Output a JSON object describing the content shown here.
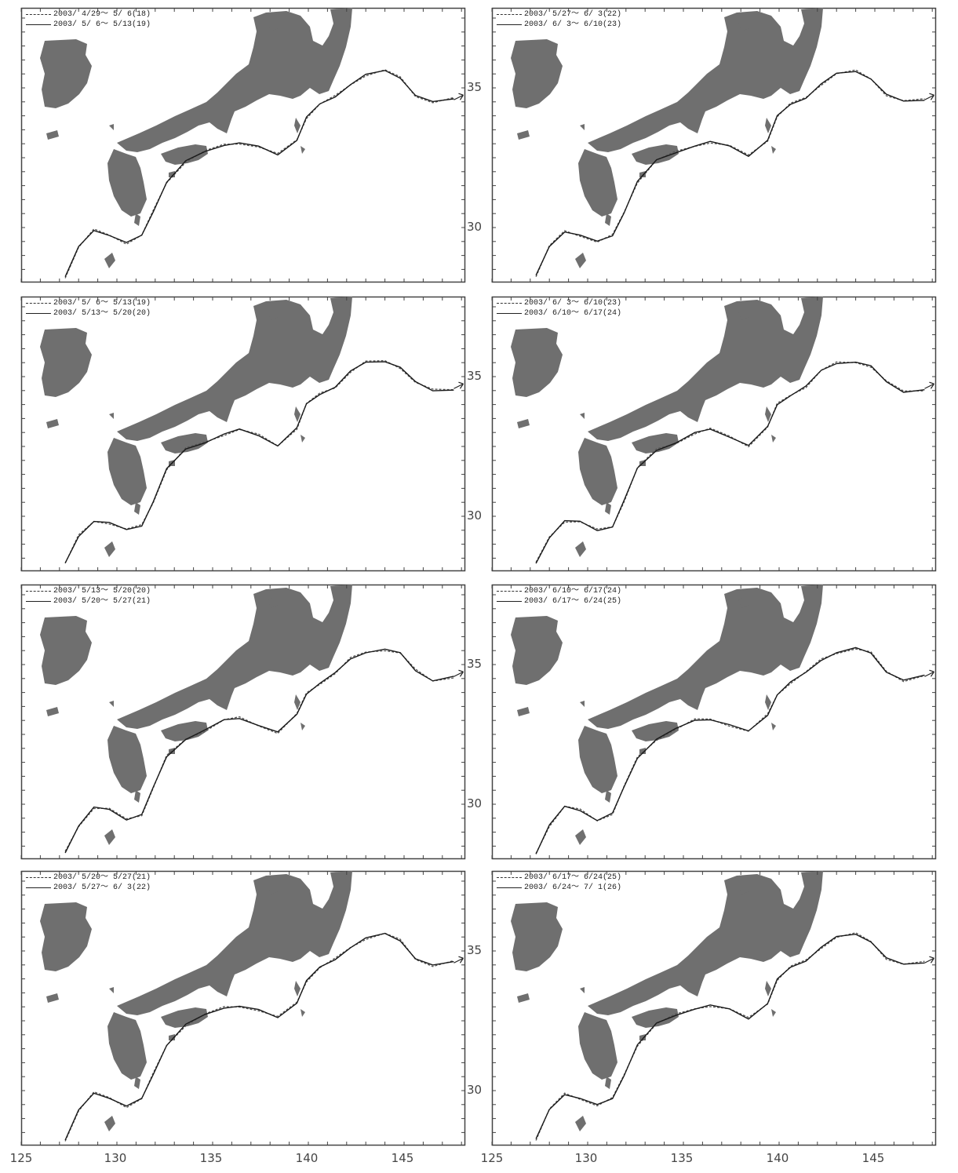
{
  "lat_labels": [
    "35",
    "30"
  ],
  "lon_labels": [
    "125",
    "130",
    "135",
    "140",
    "145"
  ],
  "colors": {
    "land": "#6f6f6f",
    "axis": "#444444",
    "path_prev": "#555555",
    "path_curr": "#1a1a1a"
  },
  "panels": [
    {
      "id": "p1",
      "legend": [
        "2003/ 4/29～ 5/ 6(18)",
        "2003/ 5/ 6～ 5/13(19)"
      ],
      "show_lat": false,
      "show_lon": false
    },
    {
      "id": "p2",
      "legend": [
        "2003/ 5/27～ 6/ 3(22)",
        "2003/ 6/ 3～ 6/10(23)"
      ],
      "show_lat": true,
      "show_lon": false
    },
    {
      "id": "p3",
      "legend": [
        "2003/ 5/ 6～ 5/13(19)",
        "2003/ 5/13～ 5/20(20)"
      ],
      "show_lat": false,
      "show_lon": false
    },
    {
      "id": "p4",
      "legend": [
        "2003/ 6/ 3～ 6/10(23)",
        "2003/ 6/10～ 6/17(24)"
      ],
      "show_lat": true,
      "show_lon": false
    },
    {
      "id": "p5",
      "legend": [
        "2003/ 5/13～ 5/20(20)",
        "2003/ 5/20～ 5/27(21)"
      ],
      "show_lat": false,
      "show_lon": false
    },
    {
      "id": "p6",
      "legend": [
        "2003/ 6/10～ 6/17(24)",
        "2003/ 6/17～ 6/24(25)"
      ],
      "show_lat": true,
      "show_lon": false
    },
    {
      "id": "p7",
      "legend": [
        "2003/ 5/20～ 5/27(21)",
        "2003/ 5/27～ 6/ 3(22)"
      ],
      "show_lat": false,
      "show_lon": true
    },
    {
      "id": "p8",
      "legend": [
        "2003/ 6/17～ 6/24(25)",
        "2003/ 6/24～ 7/ 1(26)"
      ],
      "show_lat": true,
      "show_lon": true
    }
  ]
}
